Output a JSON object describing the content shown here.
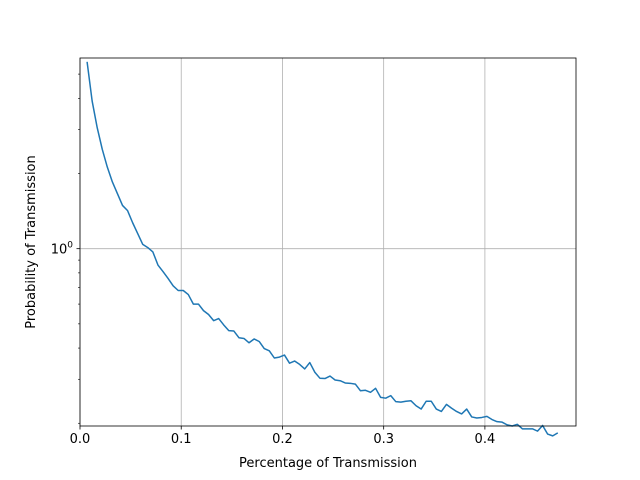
{
  "chart_data": {
    "type": "line",
    "title": "",
    "xlabel": "Percentage of Transmission",
    "ylabel": "Probability of Transmission",
    "x_scale": "linear",
    "y_scale": "log",
    "xlim": [
      0.0,
      0.49
    ],
    "ylim": [
      0.195,
      5.8
    ],
    "x_ticks": [
      0.0,
      0.1,
      0.2,
      0.3,
      0.4
    ],
    "x_tick_labels": [
      "0.0",
      "0.1",
      "0.2",
      "0.3",
      "0.4"
    ],
    "y_ticks": [
      1.0
    ],
    "y_tick_labels": [
      "10^0"
    ],
    "grid": true,
    "legend": "none",
    "colors": {
      "line": "#1f77b4",
      "grid": "#b0b0b0"
    },
    "series": [
      {
        "x": [
          0.007,
          0.012,
          0.017,
          0.022,
          0.027,
          0.032,
          0.037,
          0.042,
          0.047,
          0.052,
          0.057,
          0.062,
          0.067,
          0.072,
          0.077,
          0.082,
          0.087,
          0.092,
          0.097,
          0.102,
          0.107,
          0.112,
          0.117,
          0.122,
          0.127,
          0.132,
          0.137,
          0.142,
          0.147,
          0.152,
          0.157,
          0.162,
          0.167,
          0.172,
          0.177,
          0.182,
          0.187,
          0.192,
          0.197,
          0.202,
          0.207,
          0.212,
          0.217,
          0.222,
          0.227,
          0.232,
          0.237,
          0.242,
          0.247,
          0.252,
          0.257,
          0.262,
          0.267,
          0.272,
          0.277,
          0.282,
          0.287,
          0.292,
          0.297,
          0.302,
          0.307,
          0.312,
          0.317,
          0.322,
          0.327,
          0.332,
          0.337,
          0.342,
          0.347,
          0.352,
          0.357,
          0.362,
          0.367,
          0.372,
          0.377,
          0.382,
          0.387,
          0.392,
          0.397,
          0.402,
          0.407,
          0.412,
          0.417,
          0.422,
          0.427,
          0.432,
          0.437,
          0.442,
          0.447,
          0.452,
          0.457,
          0.462,
          0.467,
          0.472
        ],
        "y": [
          5.6,
          3.9,
          3.05,
          2.5,
          2.12,
          1.85,
          1.66,
          1.49,
          1.42,
          1.27,
          1.15,
          1.04,
          1.01,
          0.97,
          0.86,
          0.81,
          0.76,
          0.71,
          0.68,
          0.68,
          0.655,
          0.6,
          0.6,
          0.565,
          0.545,
          0.515,
          0.525,
          0.495,
          0.47,
          0.468,
          0.44,
          0.437,
          0.42,
          0.435,
          0.425,
          0.398,
          0.39,
          0.365,
          0.368,
          0.375,
          0.348,
          0.355,
          0.344,
          0.33,
          0.35,
          0.32,
          0.303,
          0.302,
          0.309,
          0.298,
          0.296,
          0.29,
          0.289,
          0.287,
          0.27,
          0.271,
          0.266,
          0.276,
          0.254,
          0.252,
          0.258,
          0.244,
          0.243,
          0.245,
          0.246,
          0.235,
          0.228,
          0.245,
          0.245,
          0.228,
          0.223,
          0.238,
          0.23,
          0.223,
          0.218,
          0.228,
          0.212,
          0.21,
          0.211,
          0.213,
          0.207,
          0.203,
          0.202,
          0.197,
          0.195,
          0.198,
          0.19,
          0.19,
          0.19,
          0.186,
          0.196,
          0.181,
          0.178,
          0.183
        ]
      }
    ]
  }
}
